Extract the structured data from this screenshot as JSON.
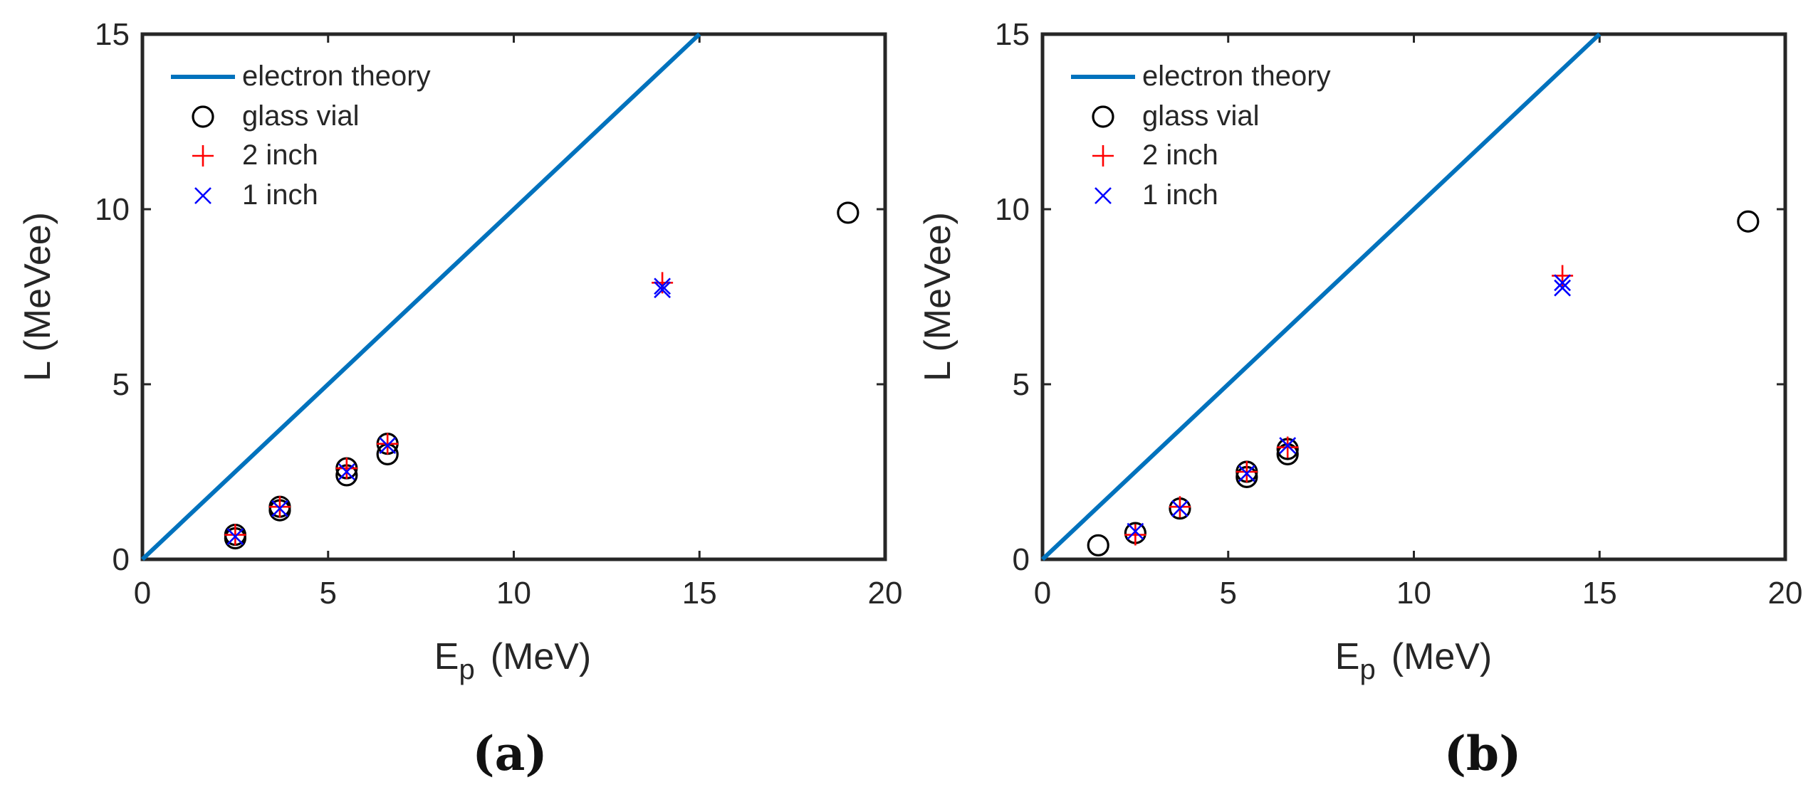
{
  "colors": {
    "theory": "#0072BD",
    "glass_vial": "#000000",
    "two_inch": "#FF0000",
    "one_inch": "#0000FF",
    "axes": "#262626"
  },
  "chart_data": [
    {
      "type": "scatter",
      "caption": "(a)",
      "xlabel": "E",
      "xlabel_sub": "p",
      "xlabel_unit": "(MeV)",
      "ylabel": "L (MeVee)",
      "xlim": [
        0,
        20
      ],
      "ylim": [
        0,
        15
      ],
      "xticks": [
        0,
        5,
        10,
        15,
        20
      ],
      "yticks": [
        0,
        5,
        10,
        15
      ],
      "legend_position": "top-left",
      "series": [
        {
          "name": "electron theory",
          "marker": "line",
          "color": "#0072BD",
          "x": [
            0,
            15
          ],
          "y": [
            0,
            15
          ]
        },
        {
          "name": "glass vial",
          "marker": "circle",
          "color": "#000000",
          "x": [
            2.5,
            2.5,
            3.7,
            3.7,
            5.5,
            5.5,
            6.6,
            6.6,
            19.0
          ],
          "y": [
            0.6,
            0.7,
            1.4,
            1.5,
            2.4,
            2.6,
            3.0,
            3.3,
            9.9
          ]
        },
        {
          "name": "2 inch",
          "marker": "plus",
          "color": "#FF0000",
          "x": [
            2.5,
            3.7,
            5.5,
            6.6,
            14.0
          ],
          "y": [
            0.7,
            1.5,
            2.6,
            3.3,
            7.9
          ]
        },
        {
          "name": "1 inch",
          "marker": "x",
          "color": "#0000FF",
          "x": [
            2.5,
            3.7,
            5.5,
            6.6,
            14.0,
            14.0
          ],
          "y": [
            0.65,
            1.45,
            2.5,
            3.25,
            7.7,
            7.8
          ]
        }
      ]
    },
    {
      "type": "scatter",
      "caption": "(b)",
      "xlabel": "E",
      "xlabel_sub": "p",
      "xlabel_unit": "(MeV)",
      "ylabel": "L (MeVee)",
      "xlim": [
        0,
        20
      ],
      "ylim": [
        0,
        15
      ],
      "xticks": [
        0,
        5,
        10,
        15,
        20
      ],
      "yticks": [
        0,
        5,
        10,
        15
      ],
      "legend_position": "top-left",
      "series": [
        {
          "name": "electron theory",
          "marker": "line",
          "color": "#0072BD",
          "x": [
            0,
            15
          ],
          "y": [
            0,
            15
          ]
        },
        {
          "name": "glass vial",
          "marker": "circle",
          "color": "#000000",
          "x": [
            1.5,
            2.5,
            3.7,
            5.5,
            5.5,
            6.6,
            6.6,
            19.0
          ],
          "y": [
            0.4,
            0.75,
            1.45,
            2.35,
            2.5,
            3.0,
            3.15,
            9.65
          ]
        },
        {
          "name": "2 inch",
          "marker": "plus",
          "color": "#FF0000",
          "x": [
            2.5,
            3.7,
            5.5,
            6.6,
            14.0
          ],
          "y": [
            0.7,
            1.5,
            2.5,
            3.2,
            8.1
          ]
        },
        {
          "name": "1 inch",
          "marker": "x",
          "color": "#0000FF",
          "x": [
            2.5,
            3.7,
            5.5,
            6.6,
            14.0,
            14.0
          ],
          "y": [
            0.8,
            1.45,
            2.45,
            3.25,
            7.75,
            7.9
          ]
        }
      ]
    }
  ]
}
